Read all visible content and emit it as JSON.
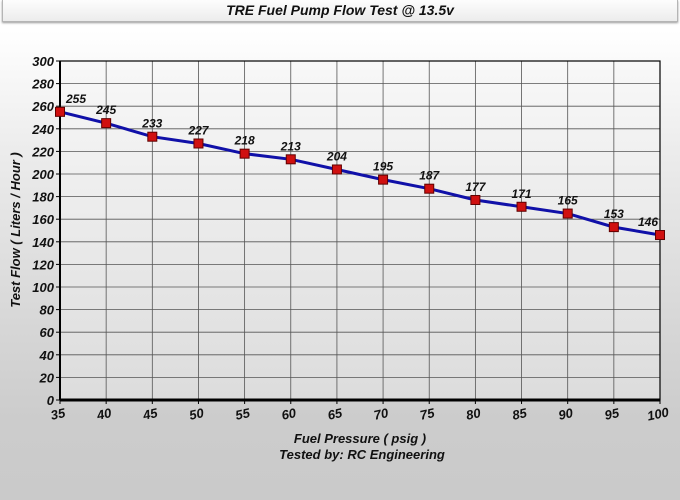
{
  "chart_data": {
    "type": "line",
    "title": "TRE Fuel Pump Flow Test @ 13.5v",
    "xlabel": "Fuel Pressure ( psig )",
    "subtitle": "Tested by: RC Engineering",
    "ylabel": "Test Flow ( Liters / Hour )",
    "x": [
      35,
      40,
      45,
      50,
      55,
      60,
      65,
      70,
      75,
      80,
      85,
      90,
      95,
      100
    ],
    "values": [
      255,
      245,
      233,
      227,
      218,
      213,
      204,
      195,
      187,
      177,
      171,
      165,
      153,
      146
    ],
    "xlim": [
      35,
      100
    ],
    "ylim": [
      0,
      300
    ],
    "xticks": [
      35,
      40,
      45,
      50,
      55,
      60,
      65,
      70,
      75,
      80,
      85,
      90,
      95,
      100
    ],
    "yticks": [
      0,
      20,
      40,
      60,
      80,
      100,
      120,
      140,
      160,
      180,
      200,
      220,
      240,
      260,
      280,
      300
    ],
    "grid": true,
    "data_labels": true,
    "colors": {
      "line": "#1010a8",
      "marker": "#d01010",
      "marker_border": "#600000"
    }
  }
}
